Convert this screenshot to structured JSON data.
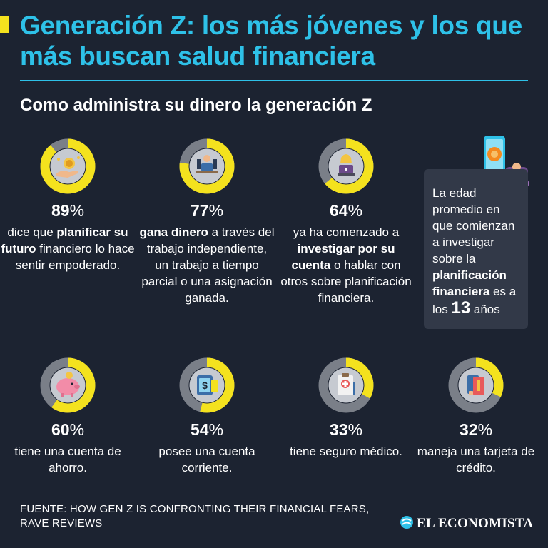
{
  "header": {
    "title": "Generación Z: los más jóvenes y los que más buscan salud financiera",
    "subtitle": "Como administra su dinero la generación Z"
  },
  "colors": {
    "background": "#1c2331",
    "accent_yellow": "#f4e21e",
    "ring_gray": "#7a7f88",
    "title_blue": "#2ec1e8",
    "icon_disc": "#c6cad1"
  },
  "chart_data": {
    "type": "donut",
    "title": "Como administra su dinero la generación Z",
    "unit": "%",
    "items": [
      {
        "value": 89,
        "pct_label": "89",
        "icon": "money-hand-icon",
        "description": [
          {
            "t": "dice que "
          },
          {
            "t": "planificar su futuro",
            "b": true
          },
          {
            "t": " financiero lo hace sentir empoderado."
          }
        ]
      },
      {
        "value": 77,
        "pct_label": "77",
        "icon": "relaxed-worker-icon",
        "description": [
          {
            "t": "gana dinero",
            "b": true
          },
          {
            "t": " a través del trabajo independiente, un trabajo a tiempo parcial o una asignación ganada."
          }
        ]
      },
      {
        "value": 64,
        "pct_label": "64",
        "icon": "laptop-woman-icon",
        "description": [
          {
            "t": "ya ha comenzado a "
          },
          {
            "t": "investigar por su cuenta",
            "b": true
          },
          {
            "t": " o hablar con otros sobre planificación financiera."
          }
        ]
      },
      {
        "value": 60,
        "pct_label": "60",
        "icon": "piggy-bank-icon",
        "description": [
          {
            "t": "tiene una cuenta de ahorro."
          }
        ]
      },
      {
        "value": 54,
        "pct_label": "54",
        "icon": "bank-card-phone-icon",
        "description": [
          {
            "t": "posee una cuenta corriente."
          }
        ]
      },
      {
        "value": 33,
        "pct_label": "33",
        "icon": "medical-clipboard-icon",
        "description": [
          {
            "t": "tiene seguro médico."
          }
        ]
      },
      {
        "value": 32,
        "pct_label": "32",
        "icon": "credit-cards-icon",
        "description": [
          {
            "t": "maneja una tarjeta de crédito."
          }
        ]
      }
    ]
  },
  "callout": {
    "text_before": "La edad promedio en que comienzan a investigar sobre la ",
    "text_bold": "planificación financiera",
    "text_mid": " es a los ",
    "age": "13",
    "text_after": " años",
    "icon": "phone-tap-icon"
  },
  "footer": {
    "source": "FUENTE: HOW GEN Z IS CONFRONTING THEIR FINANCIAL FEARS, RAVE REVIEWS",
    "logo_text": "EL ECONOMISTA"
  }
}
